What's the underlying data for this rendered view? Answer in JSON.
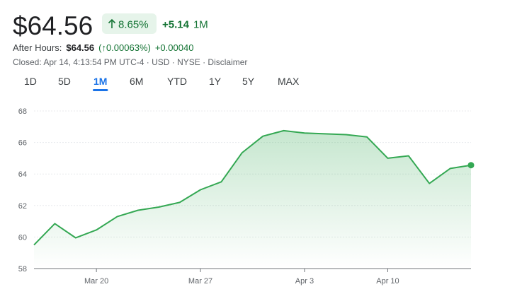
{
  "header": {
    "price": "$64.56",
    "change_percent": "8.65%",
    "change": "+5.14",
    "period": "1M",
    "after_hours_label": "After Hours:",
    "after_hours_price": "$64.56",
    "after_hours_change_percent": "(↑0.00063%)",
    "after_hours_change": "+0.00040",
    "closed_info": "Closed: Apr 14, 4:13:54 PM UTC-4 · USD · NYSE · Disclaimer"
  },
  "tabs": [
    "1D",
    "5D",
    "1M",
    "6M",
    "YTD",
    "1Y",
    "5Y",
    "MAX"
  ],
  "active_tab": 2,
  "chart_data": {
    "type": "area-line",
    "color": "#34a853",
    "categories": [
      null,
      null,
      null,
      "Mar 20",
      null,
      null,
      null,
      null,
      "Mar 27",
      null,
      null,
      null,
      null,
      "Apr 3",
      null,
      null,
      null,
      "Apr 10",
      null,
      null,
      null,
      null
    ],
    "values": [
      59.5,
      60.85,
      59.95,
      60.45,
      61.3,
      61.7,
      61.9,
      62.2,
      63.0,
      63.5,
      65.35,
      66.4,
      66.75,
      66.6,
      66.55,
      66.5,
      66.35,
      65.0,
      65.15,
      63.4,
      64.35,
      64.56
    ],
    "ylim": [
      58,
      68
    ],
    "yticks": [
      58,
      60,
      62,
      64,
      66,
      68
    ],
    "grid": true
  }
}
